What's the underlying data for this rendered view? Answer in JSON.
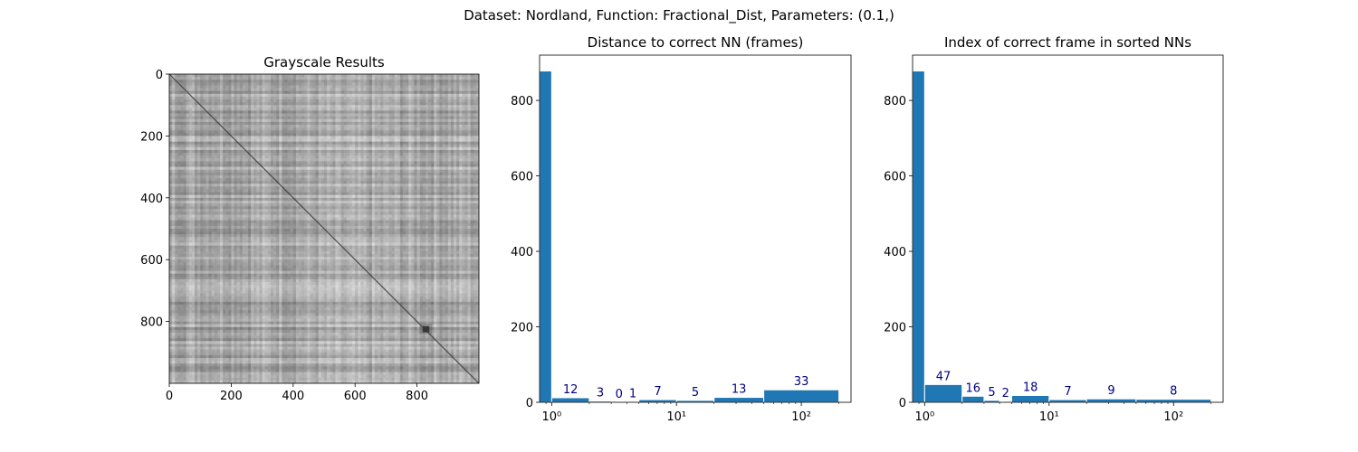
{
  "figure": {
    "suptitle": "Dataset:  Nordland,  Function:  Fractional_Dist, Parameters: (0.1,)"
  },
  "chart_data": [
    {
      "type": "heatmap",
      "title": "Grayscale Results",
      "colormap": "grayscale",
      "xlim": [
        0,
        999
      ],
      "ylim": [
        999,
        0
      ],
      "x_ticks": [
        "0",
        "200",
        "400",
        "600",
        "800"
      ],
      "y_ticks": [
        "0",
        "200",
        "400",
        "600",
        "800"
      ],
      "x_tick_values": [
        0,
        200,
        400,
        600,
        800
      ],
      "y_tick_values": [
        0,
        200,
        400,
        600,
        800
      ],
      "diagonal_minimum": true,
      "dark_blob_center": [
        830,
        825
      ]
    },
    {
      "type": "bar",
      "title": "Distance to correct NN (frames)",
      "x_scale": "log",
      "xlim": [
        0.8,
        250
      ],
      "ylim": [
        0,
        920
      ],
      "y_ticks": [
        "0",
        "200",
        "400",
        "600",
        "800"
      ],
      "y_tick_values": [
        0,
        200,
        400,
        600,
        800
      ],
      "x_ticks": [
        "10⁰",
        "10¹",
        "10²"
      ],
      "x_tick_values": [
        1,
        10,
        100
      ],
      "bins": [
        {
          "lo": 0.8,
          "hi": 1,
          "value": 878,
          "label": ""
        },
        {
          "lo": 1,
          "hi": 2,
          "value": 12,
          "label": "12"
        },
        {
          "lo": 2,
          "hi": 3,
          "value": 3,
          "label": "3"
        },
        {
          "lo": 3,
          "hi": 4,
          "value": 0,
          "label": "0"
        },
        {
          "lo": 4,
          "hi": 5,
          "value": 1,
          "label": "1"
        },
        {
          "lo": 5,
          "hi": 10,
          "value": 7,
          "label": "7"
        },
        {
          "lo": 10,
          "hi": 20,
          "value": 5,
          "label": "5"
        },
        {
          "lo": 20,
          "hi": 50,
          "value": 13,
          "label": "13"
        },
        {
          "lo": 50,
          "hi": 200,
          "value": 33,
          "label": "33"
        }
      ],
      "bar_color": "#1f77b4",
      "label_color": "#000080"
    },
    {
      "type": "bar",
      "title": "Index of correct frame in sorted NNs",
      "x_scale": "log",
      "xlim": [
        0.8,
        250
      ],
      "ylim": [
        0,
        920
      ],
      "y_ticks": [
        "0",
        "200",
        "400",
        "600",
        "800"
      ],
      "y_tick_values": [
        0,
        200,
        400,
        600,
        800
      ],
      "x_ticks": [
        "10⁰",
        "10¹",
        "10²"
      ],
      "x_tick_values": [
        1,
        10,
        100
      ],
      "bins": [
        {
          "lo": 0.8,
          "hi": 1,
          "value": 878,
          "label": ""
        },
        {
          "lo": 1,
          "hi": 2,
          "value": 47,
          "label": "47"
        },
        {
          "lo": 2,
          "hi": 3,
          "value": 16,
          "label": "16"
        },
        {
          "lo": 3,
          "hi": 4,
          "value": 5,
          "label": "5"
        },
        {
          "lo": 4,
          "hi": 5,
          "value": 2,
          "label": "2"
        },
        {
          "lo": 5,
          "hi": 10,
          "value": 18,
          "label": "18"
        },
        {
          "lo": 10,
          "hi": 20,
          "value": 7,
          "label": "7"
        },
        {
          "lo": 20,
          "hi": 50,
          "value": 9,
          "label": "9"
        },
        {
          "lo": 50,
          "hi": 200,
          "value": 8,
          "label": "8"
        }
      ],
      "bar_color": "#1f77b4",
      "label_color": "#000080"
    }
  ]
}
